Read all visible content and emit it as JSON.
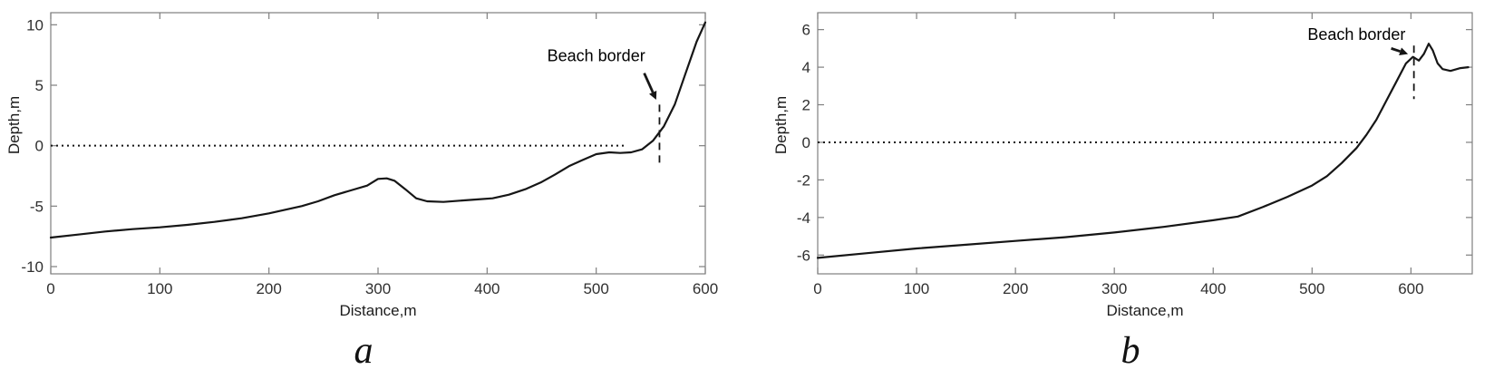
{
  "figure": {
    "background": "#ffffff",
    "curve_color": "#161616",
    "axis_color": "#7f7f7f",
    "tick_text_color": "#303030"
  },
  "chart_data": [
    {
      "type": "line",
      "sublabel": "a",
      "xlabel": "Distance,m",
      "ylabel": "Depth,m",
      "xlim": [
        0,
        600
      ],
      "ylim": [
        -10.6,
        11
      ],
      "xticks": [
        0,
        100,
        200,
        300,
        400,
        500,
        600
      ],
      "yticks": [
        -10,
        -5,
        0,
        5,
        10
      ],
      "grid": false,
      "box": true,
      "legend": "none",
      "zero_line": {
        "y": 0,
        "x_start": 0,
        "x_end": 527,
        "style": "dotted"
      },
      "beach_border": {
        "label": "Beach border",
        "x": 558,
        "y_top": 3.4,
        "y_bottom": -1.8,
        "label_x": 500,
        "label_y": 7.0,
        "arrow_from": [
          544,
          6.0
        ],
        "arrow_to": [
          555,
          3.8
        ]
      },
      "series": [
        {
          "name": "depth-profile",
          "x": [
            0,
            25,
            50,
            75,
            100,
            125,
            150,
            175,
            200,
            215,
            230,
            245,
            260,
            275,
            290,
            300,
            308,
            315,
            325,
            335,
            345,
            360,
            375,
            390,
            405,
            420,
            435,
            450,
            462,
            475,
            487,
            500,
            512,
            522,
            532,
            542,
            552,
            562,
            572,
            582,
            592,
            600
          ],
          "y": [
            -7.6,
            -7.35,
            -7.1,
            -6.9,
            -6.75,
            -6.55,
            -6.3,
            -6.0,
            -5.6,
            -5.3,
            -5.0,
            -4.6,
            -4.1,
            -3.7,
            -3.3,
            -2.75,
            -2.7,
            -2.9,
            -3.6,
            -4.35,
            -4.6,
            -4.65,
            -4.55,
            -4.45,
            -4.35,
            -4.05,
            -3.6,
            -3.0,
            -2.4,
            -1.7,
            -1.2,
            -0.7,
            -0.55,
            -0.6,
            -0.55,
            -0.3,
            0.4,
            1.6,
            3.4,
            6.0,
            8.6,
            10.2
          ]
        }
      ]
    },
    {
      "type": "line",
      "sublabel": "b",
      "xlabel": "Distance,m",
      "ylabel": "Depth,m",
      "xlim": [
        0,
        662
      ],
      "ylim": [
        -7,
        6.9
      ],
      "xticks": [
        0,
        100,
        200,
        300,
        400,
        500,
        600
      ],
      "yticks": [
        -6,
        -4,
        -2,
        0,
        2,
        4,
        6
      ],
      "grid": false,
      "box": true,
      "legend": "none",
      "zero_line": {
        "y": 0,
        "x_start": 0,
        "x_end": 550,
        "style": "dotted"
      },
      "beach_border": {
        "label": "Beach border",
        "x": 603,
        "y_top": 5.15,
        "y_bottom": 2.3,
        "label_x": 545,
        "label_y": 5.45,
        "arrow_from": [
          580,
          5.0
        ],
        "arrow_to": [
          597,
          4.7
        ]
      },
      "series": [
        {
          "name": "depth-profile",
          "x": [
            0,
            50,
            100,
            150,
            200,
            250,
            300,
            350,
            400,
            425,
            450,
            475,
            500,
            515,
            530,
            545,
            555,
            565,
            575,
            585,
            595,
            602,
            608,
            613,
            618,
            622,
            627,
            632,
            640,
            650,
            658
          ],
          "y": [
            -6.15,
            -5.9,
            -5.65,
            -5.45,
            -5.25,
            -5.05,
            -4.8,
            -4.5,
            -4.15,
            -3.95,
            -3.45,
            -2.9,
            -2.3,
            -1.8,
            -1.1,
            -0.3,
            0.4,
            1.2,
            2.2,
            3.2,
            4.2,
            4.55,
            4.35,
            4.7,
            5.25,
            4.9,
            4.2,
            3.9,
            3.8,
            3.95,
            4.0
          ]
        }
      ]
    }
  ]
}
